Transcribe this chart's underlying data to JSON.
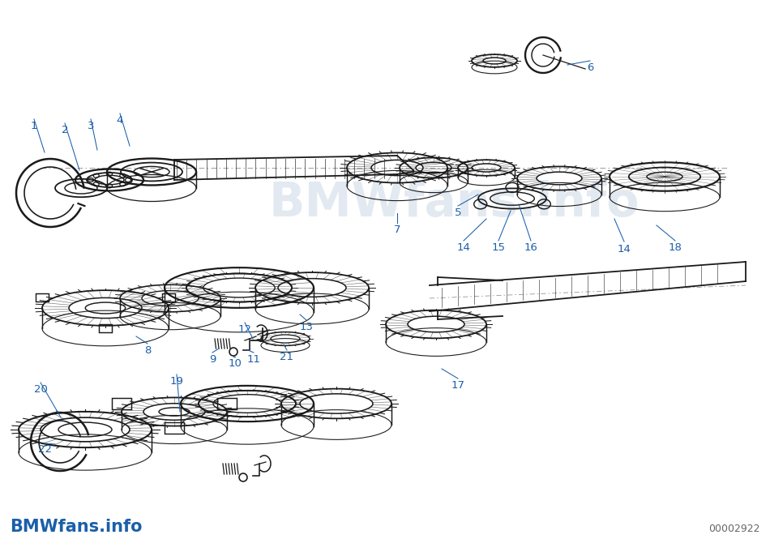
{
  "background_color": "#ffffff",
  "watermark_text": "BMWfans.info",
  "watermark_color": "#c0cfe0",
  "watermark_alpha": 0.45,
  "part_number": "00002922",
  "bottom_left_text": "BMWfans.info",
  "bottom_left_color": "#1a5fa8",
  "label_color": "#1a5fa8",
  "line_color": "#1a1a1a",
  "label_fontsize": 9.5,
  "part_number_fontsize": 9,
  "part_number_color": "#666666",
  "figsize": [
    9.5,
    6.65
  ],
  "dpi": 100
}
